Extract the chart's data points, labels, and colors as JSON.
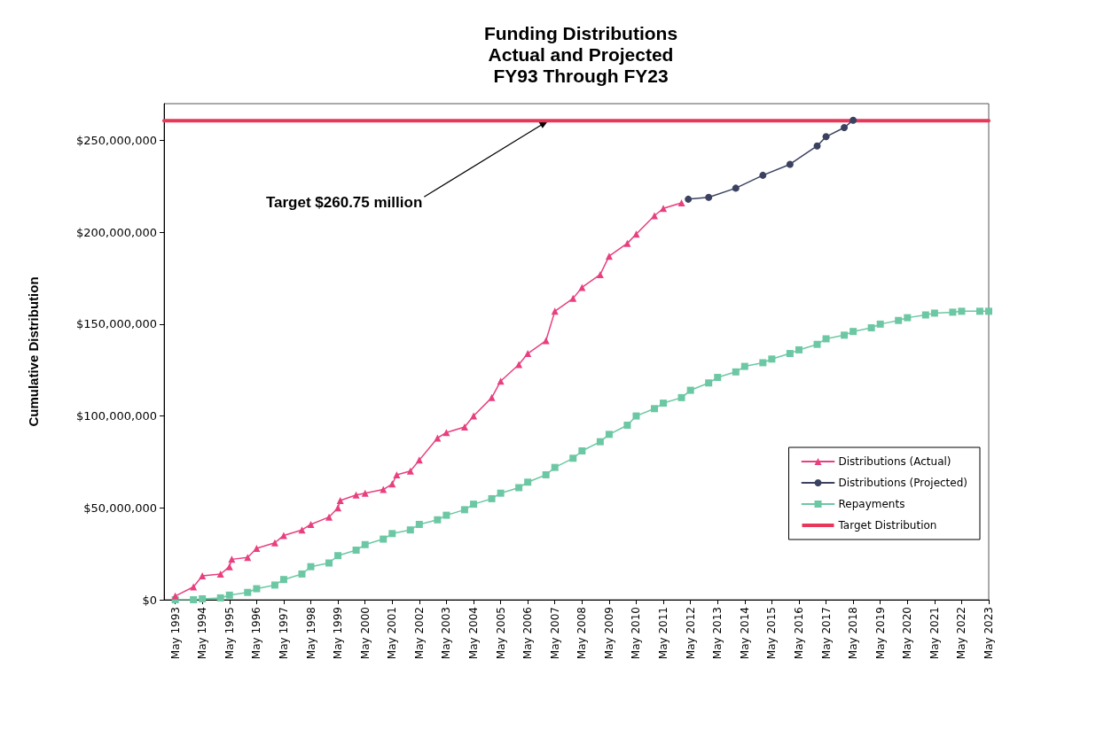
{
  "chart_data": {
    "type": "line",
    "title": "Funding Distributions\nActual and Projected\nFY93 Through FY23",
    "ylabel": "Cumulative Distribution",
    "xlim": [
      "1992-12",
      "2023-05"
    ],
    "xticks": [
      {
        "value": "1993-05",
        "label": "May 1993"
      },
      {
        "value": "1994-05",
        "label": "May 1994"
      },
      {
        "value": "1995-05",
        "label": "May 1995"
      },
      {
        "value": "1996-05",
        "label": "May 1996"
      },
      {
        "value": "1997-05",
        "label": "May 1997"
      },
      {
        "value": "1998-05",
        "label": "May 1998"
      },
      {
        "value": "1999-05",
        "label": "May 1999"
      },
      {
        "value": "2000-05",
        "label": "May 2000"
      },
      {
        "value": "2001-05",
        "label": "May 2001"
      },
      {
        "value": "2002-05",
        "label": "May 2002"
      },
      {
        "value": "2003-05",
        "label": "May 2003"
      },
      {
        "value": "2004-05",
        "label": "May 2004"
      },
      {
        "value": "2005-05",
        "label": "May 2005"
      },
      {
        "value": "2006-05",
        "label": "May 2006"
      },
      {
        "value": "2007-05",
        "label": "May 2007"
      },
      {
        "value": "2008-05",
        "label": "May 2008"
      },
      {
        "value": "2009-05",
        "label": "May 2009"
      },
      {
        "value": "2010-05",
        "label": "May 2010"
      },
      {
        "value": "2011-05",
        "label": "May 2011"
      },
      {
        "value": "2012-05",
        "label": "May 2012"
      },
      {
        "value": "2013-05",
        "label": "May 2013"
      },
      {
        "value": "2014-05",
        "label": "May 2014"
      },
      {
        "value": "2015-05",
        "label": "May 2015"
      },
      {
        "value": "2016-05",
        "label": "May 2016"
      },
      {
        "value": "2017-05",
        "label": "May 2017"
      },
      {
        "value": "2018-05",
        "label": "May 2018"
      },
      {
        "value": "2019-05",
        "label": "May 2019"
      },
      {
        "value": "2020-05",
        "label": "May 2020"
      },
      {
        "value": "2021-05",
        "label": "May 2021"
      },
      {
        "value": "2022-05",
        "label": "May 2022"
      },
      {
        "value": "2023-05",
        "label": "May 2023"
      }
    ],
    "ylim": [
      0,
      270000000
    ],
    "yticks": [
      {
        "value": 0,
        "label": "$0"
      },
      {
        "value": 50000000,
        "label": "$50,000,000"
      },
      {
        "value": 100000000,
        "label": "$100,000,000"
      },
      {
        "value": 150000000,
        "label": "$150,000,000"
      },
      {
        "value": 200000000,
        "label": "$200,000,000"
      },
      {
        "value": 250000000,
        "label": "$250,000,000"
      }
    ],
    "grid": false,
    "legend": "bottom right",
    "series": [
      {
        "name": "Distributions (Actual)",
        "color": "#e8407f",
        "marker": "triangle",
        "x": [
          "1993-05",
          "1994-01",
          "1994-05",
          "1995-01",
          "1995-05",
          "1995-06",
          "1996-01",
          "1996-05",
          "1997-01",
          "1997-05",
          "1998-01",
          "1998-05",
          "1999-01",
          "1999-05",
          "1999-06",
          "2000-01",
          "2000-05",
          "2001-01",
          "2001-05",
          "2001-07",
          "2002-01",
          "2002-05",
          "2003-01",
          "2003-05",
          "2004-01",
          "2004-05",
          "2005-01",
          "2005-05",
          "2006-01",
          "2006-05",
          "2007-01",
          "2007-05",
          "2008-01",
          "2008-05",
          "2009-01",
          "2009-05",
          "2010-01",
          "2010-05",
          "2011-01",
          "2011-05",
          "2012-01"
        ],
        "values": [
          2000000,
          7000000,
          13000000,
          14000000,
          18000000,
          22000000,
          23000000,
          28000000,
          31000000,
          35000000,
          38000000,
          41000000,
          45000000,
          50000000,
          54000000,
          57000000,
          58000000,
          60000000,
          63000000,
          68000000,
          70000000,
          76000000,
          88000000,
          91000000,
          94000000,
          100000000,
          110000000,
          119000000,
          128000000,
          134000000,
          141000000,
          157000000,
          164000000,
          170000000,
          177000000,
          187000000,
          194000000,
          199000000,
          209000000,
          213000000,
          216000000
        ]
      },
      {
        "name": "Distributions (Projected)",
        "color": "#3b4260",
        "marker": "circle",
        "x": [
          "2012-04",
          "2013-01",
          "2014-01",
          "2015-01",
          "2016-01",
          "2017-01",
          "2017-05",
          "2018-01",
          "2018-05"
        ],
        "values": [
          218000000,
          219000000,
          224000000,
          231000000,
          237000000,
          247000000,
          252000000,
          257000000,
          261000000
        ]
      },
      {
        "name": "Repayments",
        "color": "#6cc8a4",
        "marker": "square",
        "x": [
          "1993-05",
          "1994-01",
          "1994-05",
          "1995-01",
          "1995-05",
          "1996-01",
          "1996-05",
          "1997-01",
          "1997-05",
          "1998-01",
          "1998-05",
          "1999-01",
          "1999-05",
          "2000-01",
          "2000-05",
          "2001-01",
          "2001-05",
          "2002-01",
          "2002-05",
          "2003-01",
          "2003-05",
          "2004-01",
          "2004-05",
          "2005-01",
          "2005-05",
          "2006-01",
          "2006-05",
          "2007-01",
          "2007-05",
          "2008-01",
          "2008-05",
          "2009-01",
          "2009-05",
          "2010-01",
          "2010-05",
          "2011-01",
          "2011-05",
          "2012-01",
          "2012-05",
          "2013-01",
          "2013-05",
          "2014-01",
          "2014-05",
          "2015-01",
          "2015-05",
          "2016-01",
          "2016-05",
          "2017-01",
          "2017-05",
          "2018-01",
          "2018-05",
          "2019-01",
          "2019-05",
          "2020-01",
          "2020-05",
          "2021-01",
          "2021-05",
          "2022-01",
          "2022-05",
          "2023-01",
          "2023-05"
        ],
        "values": [
          0,
          0,
          500000,
          1000000,
          2500000,
          4000000,
          6000000,
          8000000,
          11000000,
          14000000,
          18000000,
          20000000,
          24000000,
          27000000,
          30000000,
          33000000,
          36000000,
          38000000,
          41000000,
          43500000,
          46000000,
          49000000,
          52000000,
          55000000,
          58000000,
          61000000,
          64000000,
          68000000,
          72000000,
          77000000,
          81000000,
          86000000,
          90000000,
          95000000,
          100000000,
          104000000,
          107000000,
          110000000,
          114000000,
          118000000,
          121000000,
          124000000,
          127000000,
          129000000,
          131000000,
          134000000,
          136000000,
          139000000,
          142000000,
          144000000,
          146000000,
          148000000,
          150000000,
          152000000,
          153500000,
          155000000,
          156000000,
          156500000,
          157000000,
          157000000,
          157000000
        ]
      },
      {
        "name": "Target Distribution",
        "color": "#e8385a",
        "marker": "none",
        "x": [
          "1992-12",
          "2023-05"
        ],
        "values": [
          260750000,
          260750000
        ]
      }
    ],
    "annotations": [
      {
        "text": "Target $260.75 million",
        "x": "2007-02",
        "y": 260750000
      }
    ]
  }
}
